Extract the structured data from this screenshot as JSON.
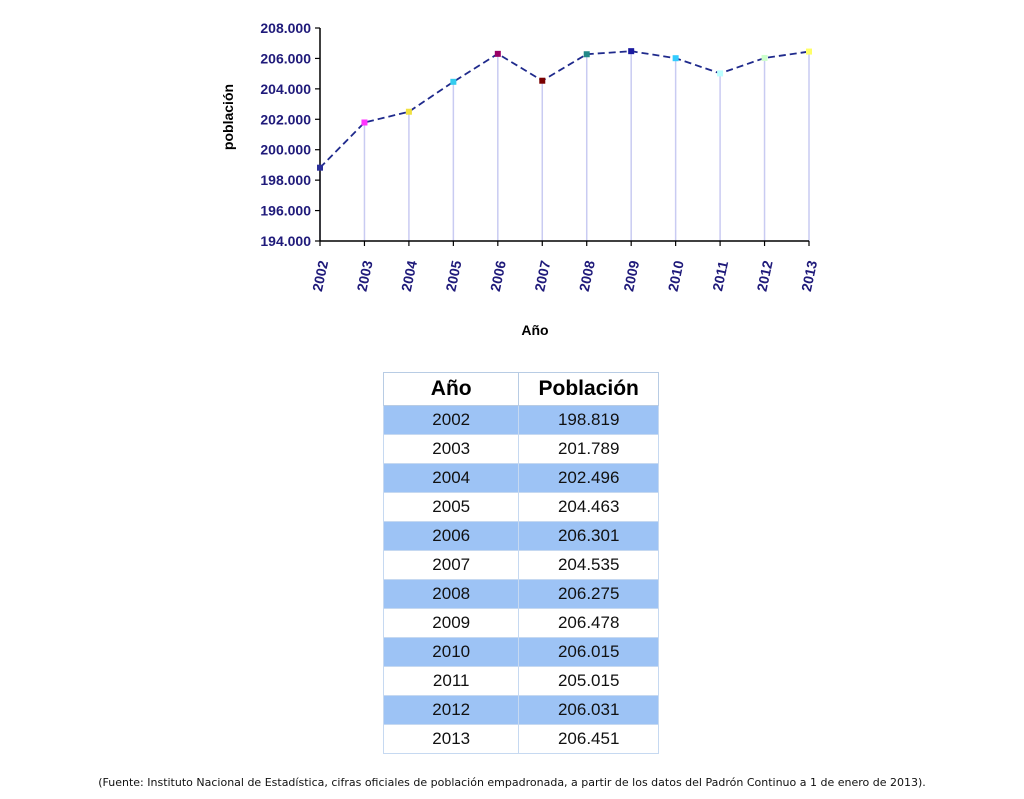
{
  "chart_data": {
    "type": "line",
    "xlabel": "Año",
    "ylabel": "población",
    "ylim": [
      194000,
      208000
    ],
    "yticks": [
      194000,
      196000,
      198000,
      200000,
      202000,
      204000,
      206000,
      208000
    ],
    "ytick_labels": [
      "194.000",
      "196.000",
      "198.000",
      "200.000",
      "202.000",
      "204.000",
      "206.000",
      "208.000"
    ],
    "categories": [
      "2002",
      "2003",
      "2004",
      "2005",
      "2006",
      "2007",
      "2008",
      "2009",
      "2010",
      "2011",
      "2012",
      "2013"
    ],
    "values": [
      198819,
      201789,
      202496,
      204463,
      206301,
      204535,
      206275,
      206478,
      206015,
      205015,
      206031,
      206451
    ],
    "line_style": "dashed",
    "drop_lines": true,
    "grid": false,
    "colors": {
      "line": "#1f2a8c",
      "axis": "#000000",
      "labels": "#1f1a7a",
      "drop_lines": "#c9cbf2",
      "markers": [
        "#2a2f9a",
        "#ff33ff",
        "#f0e040",
        "#33ccee",
        "#990066",
        "#7a0000",
        "#228888",
        "#1a1aa0",
        "#33ccff",
        "#bbffff",
        "#ccffcc",
        "#ffff66"
      ]
    }
  },
  "table": {
    "headers": [
      "Año",
      "Población"
    ],
    "rows": [
      [
        "2002",
        "198.819"
      ],
      [
        "2003",
        "201.789"
      ],
      [
        "2004",
        "202.496"
      ],
      [
        "2005",
        "204.463"
      ],
      [
        "2006",
        "206.301"
      ],
      [
        "2007",
        "204.535"
      ],
      [
        "2008",
        "206.275"
      ],
      [
        "2009",
        "206.478"
      ],
      [
        "2010",
        "206.015"
      ],
      [
        "2011",
        "205.015"
      ],
      [
        "2012",
        "206.031"
      ],
      [
        "2013",
        "206.451"
      ]
    ],
    "colors": {
      "shaded_row": "#9dc3f5",
      "border": "#c6d9f1"
    }
  },
  "source_note": "(Fuente: Instituto Nacional de Estadística, cifras oficiales de población empadronada, a partir de los datos del Padrón Continuo a 1 de enero de 2013)."
}
